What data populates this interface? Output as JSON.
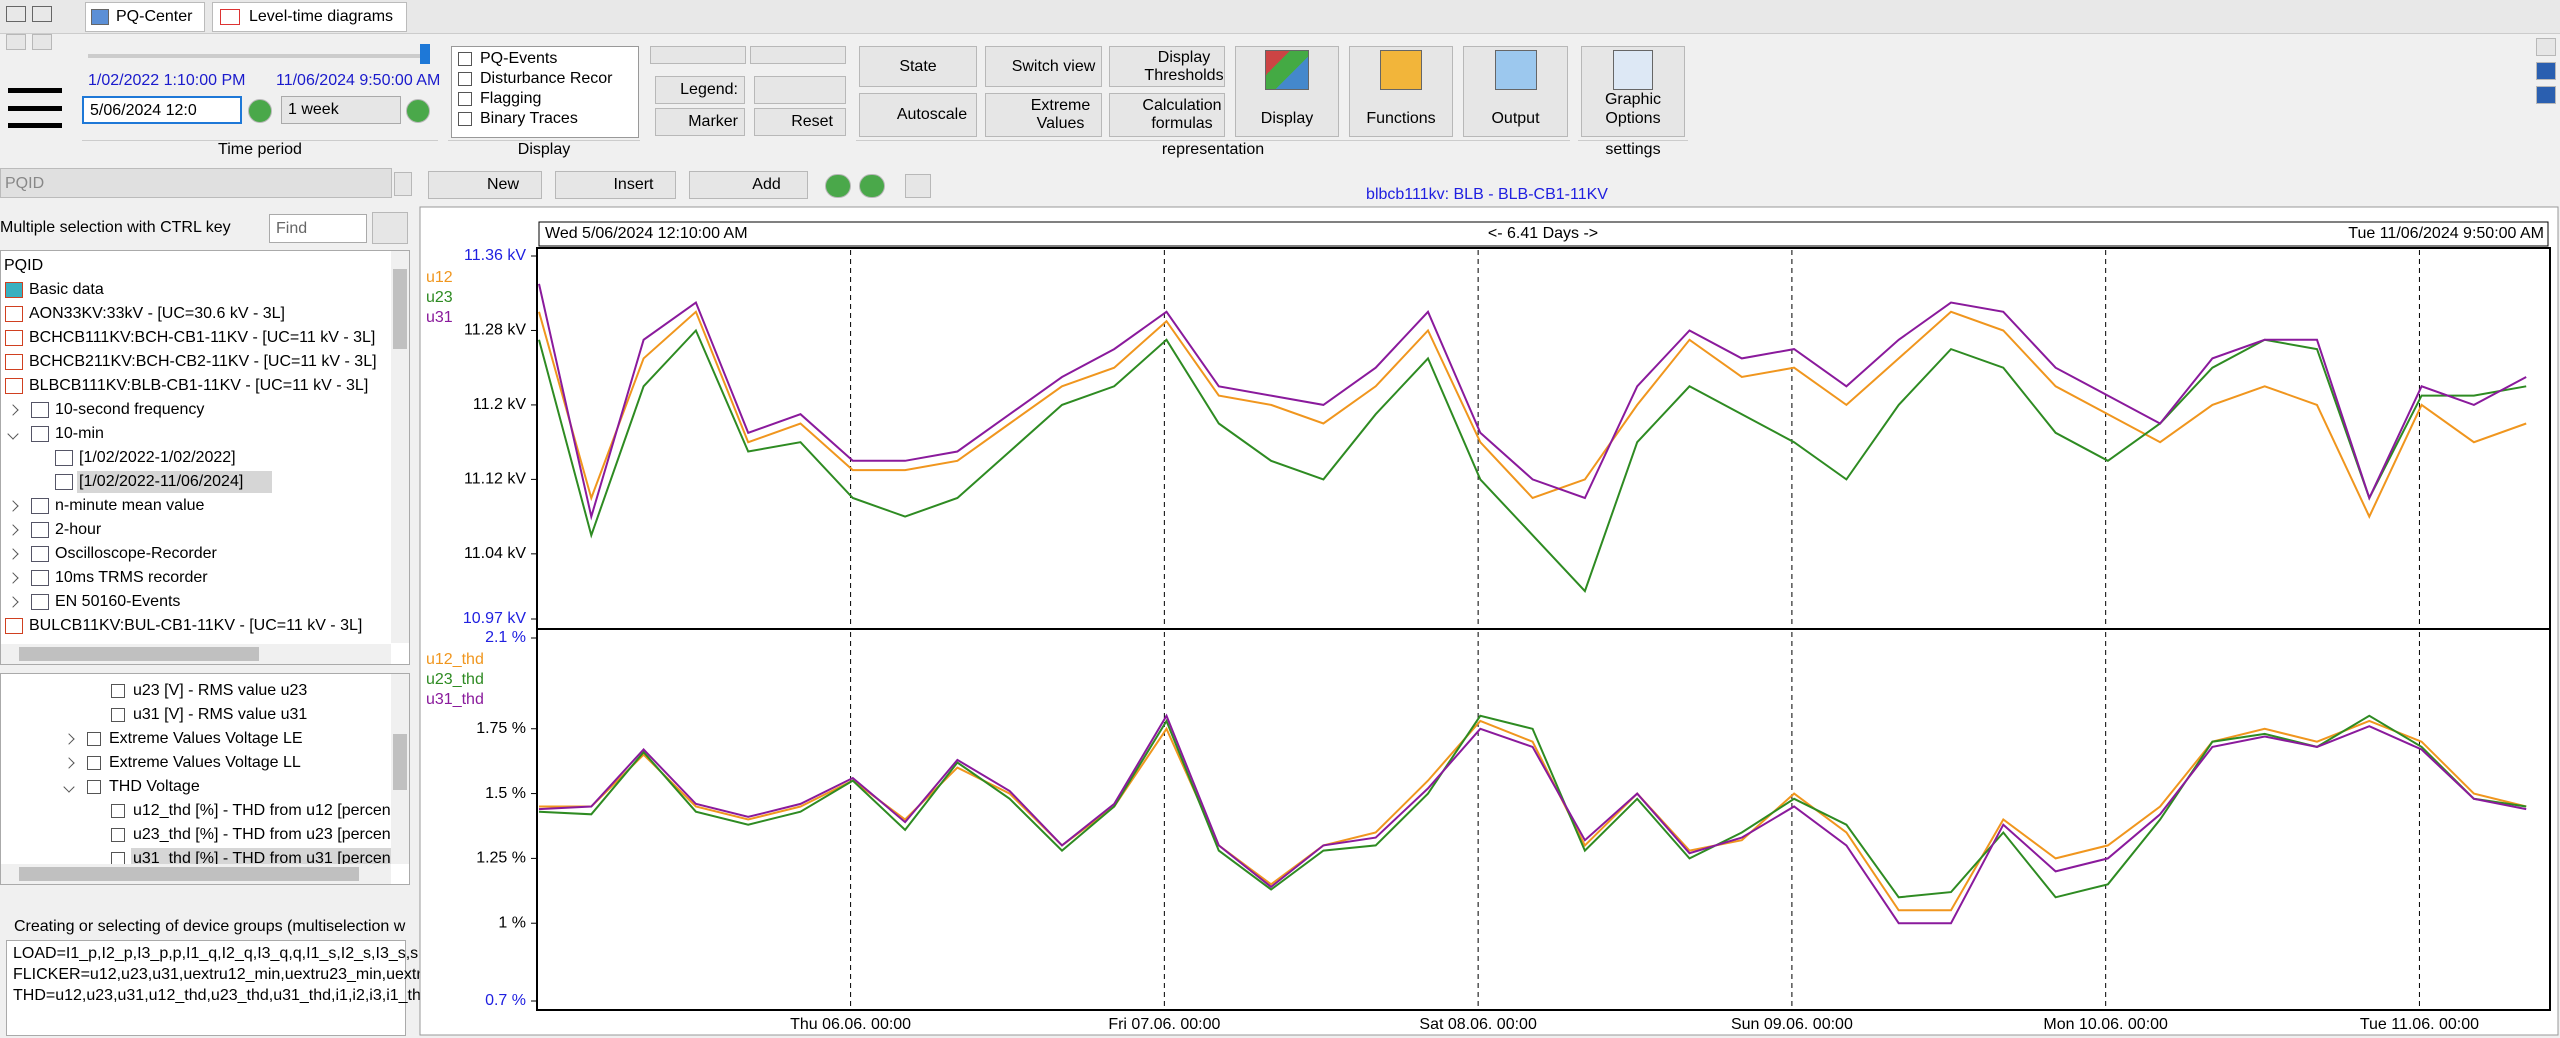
{
  "tabs": [
    "PQ-Center",
    "Level-time diagrams"
  ],
  "ribbon": {
    "time_period": {
      "start": "1/02/2022 1:10:00 PM",
      "end": "11/06/2024 9:50:00 AM",
      "date_input": "5/06/2024 12:0",
      "range": "1 week",
      "label": "Time period"
    },
    "display": {
      "items": [
        "PQ-Events",
        "Disturbance Recor",
        "Flagging",
        "Binary Traces"
      ],
      "label": "Display"
    },
    "legend": {
      "legend": "Legend:",
      "marker": "Marker",
      "reset": "Reset"
    },
    "representation": {
      "state": "State",
      "switch_view": "Switch view",
      "display_thresholds": "Display Thresholds",
      "autoscale": "Autoscale",
      "extreme_values": "Extreme Values",
      "calculation_formulas": "Calculation formulas",
      "display": "Display",
      "functions": "Functions",
      "output": "Output",
      "label": "representation"
    },
    "settings": {
      "graphic_options": "Graphic Options",
      "label": "settings"
    }
  },
  "left": {
    "combo": "PQID",
    "hint": "Multiple selection with CTRL key",
    "find": "Find",
    "tree": [
      "PQID",
      "Basic data",
      "AON33KV:33kV - [UC=30.6 kV - 3L]",
      "BCHCB111KV:BCH-CB1-11KV - [UC=11 kV - 3L]",
      "BCHCB211KV:BCH-CB2-11KV - [UC=11 kV - 3L]",
      "BLBCB111KV:BLB-CB1-11KV - [UC=11 kV - 3L]",
      "10-second frequency",
      "10-min",
      "[1/02/2022-1/02/2022]",
      "[1/02/2022-11/06/2024]",
      "n-minute mean value",
      "2-hour",
      "Oscilloscope-Recorder",
      "10ms TRMS recorder",
      "EN 50160-Events",
      "BULCB11KV:BUL-CB1-11KV - [UC=11 kV - 3L]"
    ],
    "channels": [
      "u23 [V] - RMS value u23",
      "u31 [V] - RMS value u31",
      "Extreme Values Voltage LE",
      "Extreme Values Voltage LL",
      "THD Voltage",
      "u12_thd [%] - THD from u12 [percen",
      "u23_thd [%] - THD from u23 [percen",
      "u31_thd [%] - THD from u31 [percen"
    ],
    "groups": {
      "title": "Creating or selecting of device groups (multiselection w",
      "lines": [
        "LOAD=I1_p,I2_p,I3_p,p,I1_q,I2_q,I3_q,q,I1_s,I2_s,I3_s,s,cos",
        "FLICKER=u12,u23,u31,uextru12_min,uextru23_min,uextr",
        "THD=u12,u23,u31,u12_thd,u23_thd,u31_thd,i1,i2,i3,i1_th"
      ]
    }
  },
  "chart_toolbar": {
    "new": "New",
    "insert": "Insert",
    "add": "Add"
  },
  "chart_header": {
    "title": "blbcb111kv: BLB - BLB-CB1-11KV",
    "start": "Wed 5/06/2024 12:10:00 AM",
    "span": "<- 6.41 Days ->",
    "end": "Tue 11/06/2024 9:50:00 AM"
  },
  "chart_data": [
    {
      "type": "line",
      "xlim": [
        "2024-06-05T00:10",
        "2024-06-11T09:50"
      ],
      "x": [
        "2024-06-05T00:10",
        "2024-06-05T04:10",
        "2024-06-05T08:10",
        "2024-06-05T12:10",
        "2024-06-05T16:10",
        "2024-06-05T20:10",
        "2024-06-06T00:10",
        "2024-06-06T04:10",
        "2024-06-06T08:10",
        "2024-06-06T12:10",
        "2024-06-06T16:10",
        "2024-06-06T20:10",
        "2024-06-07T00:10",
        "2024-06-07T04:10",
        "2024-06-07T08:10",
        "2024-06-07T12:10",
        "2024-06-07T16:10",
        "2024-06-07T20:10",
        "2024-06-08T00:10",
        "2024-06-08T04:10",
        "2024-06-08T08:10",
        "2024-06-08T12:10",
        "2024-06-08T16:10",
        "2024-06-08T20:10",
        "2024-06-09T00:10",
        "2024-06-09T04:10",
        "2024-06-09T08:10",
        "2024-06-09T12:10",
        "2024-06-09T16:10",
        "2024-06-09T20:10",
        "2024-06-10T00:10",
        "2024-06-10T04:10",
        "2024-06-10T08:10",
        "2024-06-10T12:10",
        "2024-06-10T16:10",
        "2024-06-10T20:10",
        "2024-06-11T00:10",
        "2024-06-11T04:10",
        "2024-06-11T08:10"
      ],
      "ylim": [
        10.97,
        11.36
      ],
      "yticks": [
        {
          "value": 11.36,
          "label": "11.36 kV"
        },
        {
          "value": 11.28,
          "label": "11.28 kV"
        },
        {
          "value": 11.2,
          "label": "11.2 kV"
        },
        {
          "value": 11.12,
          "label": "11.12 kV"
        },
        {
          "value": 11.04,
          "label": "11.04 kV"
        },
        {
          "value": 10.97,
          "label": "10.97 kV"
        }
      ],
      "series": [
        {
          "name": "u12",
          "color": "#f0961e",
          "values": [
            11.3,
            11.1,
            11.25,
            11.3,
            11.16,
            11.18,
            11.13,
            11.13,
            11.14,
            11.18,
            11.22,
            11.24,
            11.29,
            11.21,
            11.2,
            11.18,
            11.22,
            11.28,
            11.16,
            11.1,
            11.12,
            11.2,
            11.27,
            11.23,
            11.24,
            11.2,
            11.25,
            11.3,
            11.28,
            11.22,
            11.19,
            11.16,
            11.2,
            11.22,
            11.2,
            11.08,
            11.2,
            11.16,
            11.18
          ]
        },
        {
          "name": "u23",
          "color": "#2e8b22",
          "values": [
            11.27,
            11.06,
            11.22,
            11.28,
            11.15,
            11.16,
            11.1,
            11.08,
            11.1,
            11.15,
            11.2,
            11.22,
            11.27,
            11.18,
            11.14,
            11.12,
            11.19,
            11.25,
            11.12,
            11.06,
            11.0,
            11.16,
            11.22,
            11.19,
            11.16,
            11.12,
            11.2,
            11.26,
            11.24,
            11.17,
            11.14,
            11.18,
            11.24,
            11.27,
            11.26,
            11.1,
            11.21,
            11.21,
            11.22
          ]
        },
        {
          "name": "u31",
          "color": "#8a1a9c",
          "values": [
            11.33,
            11.08,
            11.27,
            11.31,
            11.17,
            11.19,
            11.14,
            11.14,
            11.15,
            11.19,
            11.23,
            11.26,
            11.3,
            11.22,
            11.21,
            11.2,
            11.24,
            11.3,
            11.17,
            11.12,
            11.1,
            11.22,
            11.28,
            11.25,
            11.26,
            11.22,
            11.27,
            11.31,
            11.3,
            11.24,
            11.21,
            11.18,
            11.25,
            11.27,
            11.27,
            11.1,
            11.22,
            11.2,
            11.23
          ]
        }
      ]
    },
    {
      "type": "line",
      "xlim": [
        "2024-06-05T00:10",
        "2024-06-11T09:50"
      ],
      "x": [
        "2024-06-05T00:10",
        "2024-06-05T04:10",
        "2024-06-05T08:10",
        "2024-06-05T12:10",
        "2024-06-05T16:10",
        "2024-06-05T20:10",
        "2024-06-06T00:10",
        "2024-06-06T04:10",
        "2024-06-06T08:10",
        "2024-06-06T12:10",
        "2024-06-06T16:10",
        "2024-06-06T20:10",
        "2024-06-07T00:10",
        "2024-06-07T04:10",
        "2024-06-07T08:10",
        "2024-06-07T12:10",
        "2024-06-07T16:10",
        "2024-06-07T20:10",
        "2024-06-08T00:10",
        "2024-06-08T04:10",
        "2024-06-08T08:10",
        "2024-06-08T12:10",
        "2024-06-08T16:10",
        "2024-06-08T20:10",
        "2024-06-09T00:10",
        "2024-06-09T04:10",
        "2024-06-09T08:10",
        "2024-06-09T12:10",
        "2024-06-09T16:10",
        "2024-06-09T20:10",
        "2024-06-10T00:10",
        "2024-06-10T04:10",
        "2024-06-10T08:10",
        "2024-06-10T12:10",
        "2024-06-10T16:10",
        "2024-06-10T20:10",
        "2024-06-11T00:10",
        "2024-06-11T04:10",
        "2024-06-11T08:10"
      ],
      "xticks": [
        {
          "value": "2024-06-06T00:00",
          "label": "Thu 06.06. 00:00"
        },
        {
          "value": "2024-06-07T00:00",
          "label": "Fri 07.06. 00:00"
        },
        {
          "value": "2024-06-08T00:00",
          "label": "Sat 08.06. 00:00"
        },
        {
          "value": "2024-06-09T00:00",
          "label": "Sun 09.06. 00:00"
        },
        {
          "value": "2024-06-10T00:00",
          "label": "Mon 10.06. 00:00"
        },
        {
          "value": "2024-06-11T00:00",
          "label": "Tue 11.06. 00:00"
        }
      ],
      "ylim": [
        0.7,
        2.1
      ],
      "yticks": [
        {
          "value": 2.1,
          "label": "2.1 %"
        },
        {
          "value": 1.75,
          "label": "1.75 %"
        },
        {
          "value": 1.5,
          "label": "1.5 %"
        },
        {
          "value": 1.25,
          "label": "1.25 %"
        },
        {
          "value": 1,
          "label": "1 %"
        },
        {
          "value": 0.7,
          "label": "0.7 %"
        }
      ],
      "series": [
        {
          "name": "u12_thd",
          "color": "#f0961e",
          "values": [
            1.45,
            1.45,
            1.65,
            1.45,
            1.4,
            1.45,
            1.55,
            1.4,
            1.6,
            1.5,
            1.3,
            1.45,
            1.75,
            1.3,
            1.15,
            1.3,
            1.35,
            1.55,
            1.78,
            1.7,
            1.3,
            1.5,
            1.28,
            1.32,
            1.5,
            1.35,
            1.05,
            1.05,
            1.4,
            1.25,
            1.3,
            1.45,
            1.7,
            1.75,
            1.7,
            1.78,
            1.7,
            1.5,
            1.45
          ]
        },
        {
          "name": "u23_thd",
          "color": "#2e8b22",
          "values": [
            1.43,
            1.42,
            1.66,
            1.43,
            1.38,
            1.43,
            1.55,
            1.36,
            1.62,
            1.48,
            1.28,
            1.45,
            1.78,
            1.28,
            1.13,
            1.28,
            1.3,
            1.5,
            1.8,
            1.75,
            1.28,
            1.48,
            1.25,
            1.35,
            1.48,
            1.38,
            1.1,
            1.12,
            1.35,
            1.1,
            1.15,
            1.4,
            1.7,
            1.73,
            1.68,
            1.8,
            1.68,
            1.48,
            1.45
          ]
        },
        {
          "name": "u31_thd",
          "color": "#8a1a9c",
          "values": [
            1.44,
            1.45,
            1.67,
            1.46,
            1.41,
            1.46,
            1.56,
            1.39,
            1.63,
            1.51,
            1.3,
            1.46,
            1.8,
            1.3,
            1.14,
            1.3,
            1.33,
            1.52,
            1.75,
            1.68,
            1.32,
            1.5,
            1.27,
            1.33,
            1.45,
            1.3,
            1.0,
            1.0,
            1.38,
            1.2,
            1.25,
            1.42,
            1.68,
            1.72,
            1.68,
            1.76,
            1.67,
            1.48,
            1.44
          ]
        }
      ]
    }
  ]
}
